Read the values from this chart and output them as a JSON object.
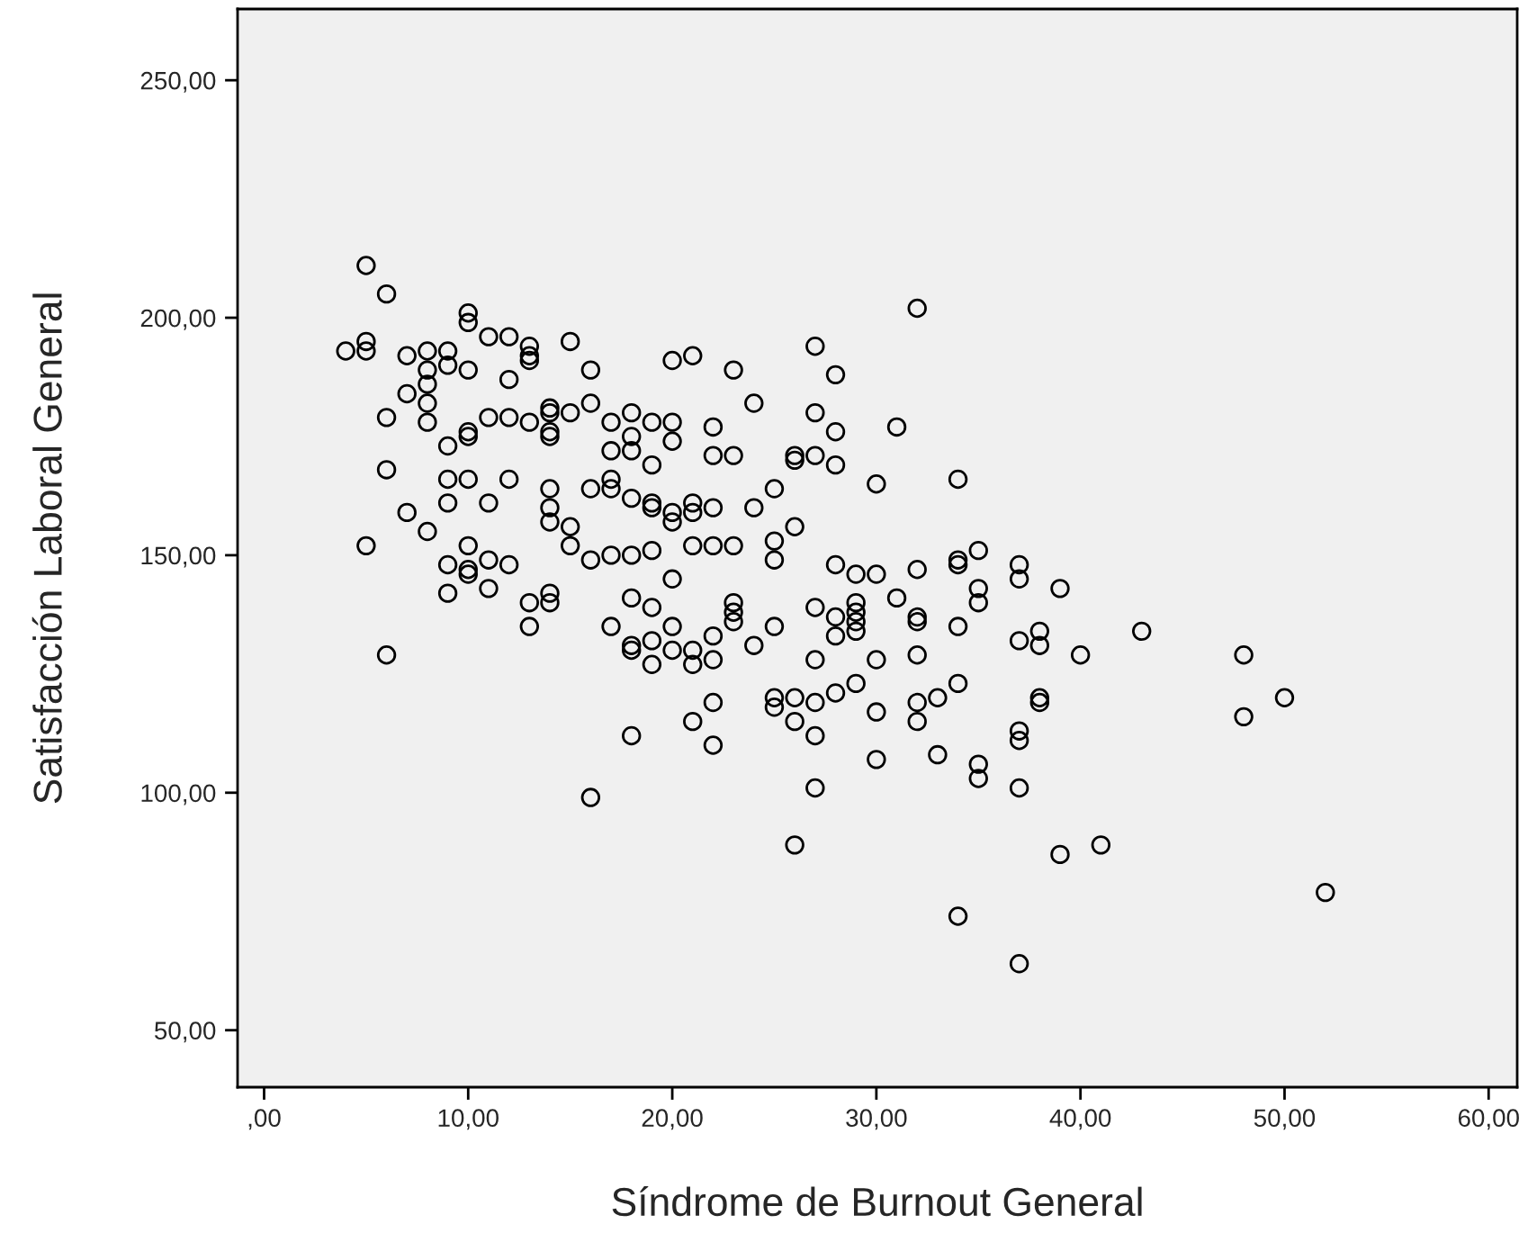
{
  "chart_data": {
    "type": "scatter",
    "xlabel": "Síndrome de Burnout General",
    "ylabel": "Satisfacción Laboral General",
    "x": [
      4,
      5,
      5,
      5,
      5,
      6,
      6,
      6,
      6,
      7,
      7,
      7,
      8,
      8,
      8,
      8,
      8,
      8,
      9,
      9,
      9,
      9,
      9,
      9,
      9,
      10,
      10,
      10,
      10,
      10,
      10,
      10,
      10,
      10,
      11,
      11,
      11,
      11,
      11,
      12,
      12,
      12,
      12,
      12,
      13,
      13,
      13,
      13,
      13,
      13,
      14,
      14,
      14,
      14,
      14,
      14,
      14,
      14,
      14,
      15,
      15,
      15,
      15,
      16,
      16,
      16,
      16,
      16,
      17,
      17,
      17,
      17,
      17,
      17,
      18,
      18,
      18,
      18,
      18,
      18,
      18,
      18,
      18,
      19,
      19,
      19,
      19,
      19,
      19,
      19,
      19,
      20,
      20,
      20,
      20,
      20,
      20,
      20,
      20,
      21,
      21,
      21,
      21,
      21,
      21,
      21,
      22,
      22,
      22,
      22,
      22,
      22,
      22,
      22,
      23,
      23,
      23,
      23,
      23,
      23,
      24,
      24,
      24,
      25,
      25,
      25,
      25,
      25,
      25,
      26,
      26,
      26,
      26,
      26,
      26,
      27,
      27,
      27,
      27,
      27,
      27,
      27,
      27,
      28,
      28,
      28,
      28,
      28,
      28,
      28,
      29,
      29,
      29,
      29,
      29,
      29,
      30,
      30,
      30,
      30,
      30,
      31,
      31,
      32,
      32,
      32,
      32,
      32,
      32,
      32,
      33,
      33,
      34,
      34,
      34,
      34,
      34,
      34,
      35,
      35,
      35,
      35,
      35,
      37,
      37,
      37,
      37,
      37,
      37,
      37,
      38,
      38,
      38,
      38,
      39,
      39,
      40,
      41,
      43,
      48,
      48,
      50,
      52
    ],
    "series": [
      {
        "color": "#000000",
        "values": [
          193,
          211,
          195,
          193,
          152,
          205,
          179,
          168,
          129,
          192,
          184,
          159,
          193,
          189,
          186,
          182,
          178,
          155,
          193,
          190,
          173,
          166,
          161,
          148,
          142,
          201,
          199,
          189,
          176,
          175,
          166,
          152,
          147,
          146,
          196,
          179,
          161,
          149,
          143,
          196,
          187,
          179,
          166,
          148,
          194,
          192,
          191,
          178,
          140,
          135,
          181,
          180,
          176,
          175,
          164,
          160,
          157,
          142,
          140,
          195,
          180,
          156,
          152,
          189,
          182,
          164,
          149,
          99,
          178,
          172,
          166,
          164,
          150,
          135,
          180,
          175,
          172,
          162,
          150,
          141,
          131,
          130,
          112,
          178,
          169,
          161,
          160,
          151,
          139,
          132,
          127,
          191,
          178,
          174,
          159,
          157,
          145,
          135,
          130,
          192,
          161,
          159,
          152,
          130,
          127,
          115,
          177,
          171,
          160,
          152,
          133,
          128,
          119,
          110,
          189,
          171,
          152,
          140,
          138,
          136,
          182,
          160,
          131,
          164,
          153,
          149,
          135,
          120,
          118,
          171,
          170,
          156,
          120,
          115,
          89,
          194,
          180,
          171,
          139,
          128,
          119,
          112,
          101,
          188,
          176,
          169,
          148,
          137,
          133,
          121,
          146,
          140,
          138,
          136,
          134,
          123,
          165,
          146,
          128,
          117,
          107,
          177,
          141,
          202,
          147,
          137,
          136,
          129,
          119,
          115,
          120,
          108,
          166,
          149,
          148,
          135,
          123,
          74,
          151,
          143,
          140,
          106,
          103,
          148,
          145,
          132,
          113,
          111,
          101,
          64,
          134,
          131,
          120,
          119,
          143,
          87,
          129,
          89,
          134,
          129,
          116,
          120,
          79
        ]
      }
    ],
    "marker": "circle",
    "xlim": [
      -1.3,
      61.4
    ],
    "ylim": [
      38,
      265
    ],
    "xticks": [
      {
        "value": 0,
        "label": ",00"
      },
      {
        "value": 10,
        "label": "10,00"
      },
      {
        "value": 20,
        "label": "20,00"
      },
      {
        "value": 30,
        "label": "30,00"
      },
      {
        "value": 40,
        "label": "40,00"
      },
      {
        "value": 50,
        "label": "50,00"
      },
      {
        "value": 60,
        "label": "60,00"
      }
    ],
    "yticks": [
      {
        "value": 50,
        "label": "50,00"
      },
      {
        "value": 100,
        "label": "100,00"
      },
      {
        "value": 150,
        "label": "150,00"
      },
      {
        "value": 200,
        "label": "200,00"
      },
      {
        "value": 250,
        "label": "250,00"
      }
    ],
    "grid": false,
    "legend": false
  }
}
